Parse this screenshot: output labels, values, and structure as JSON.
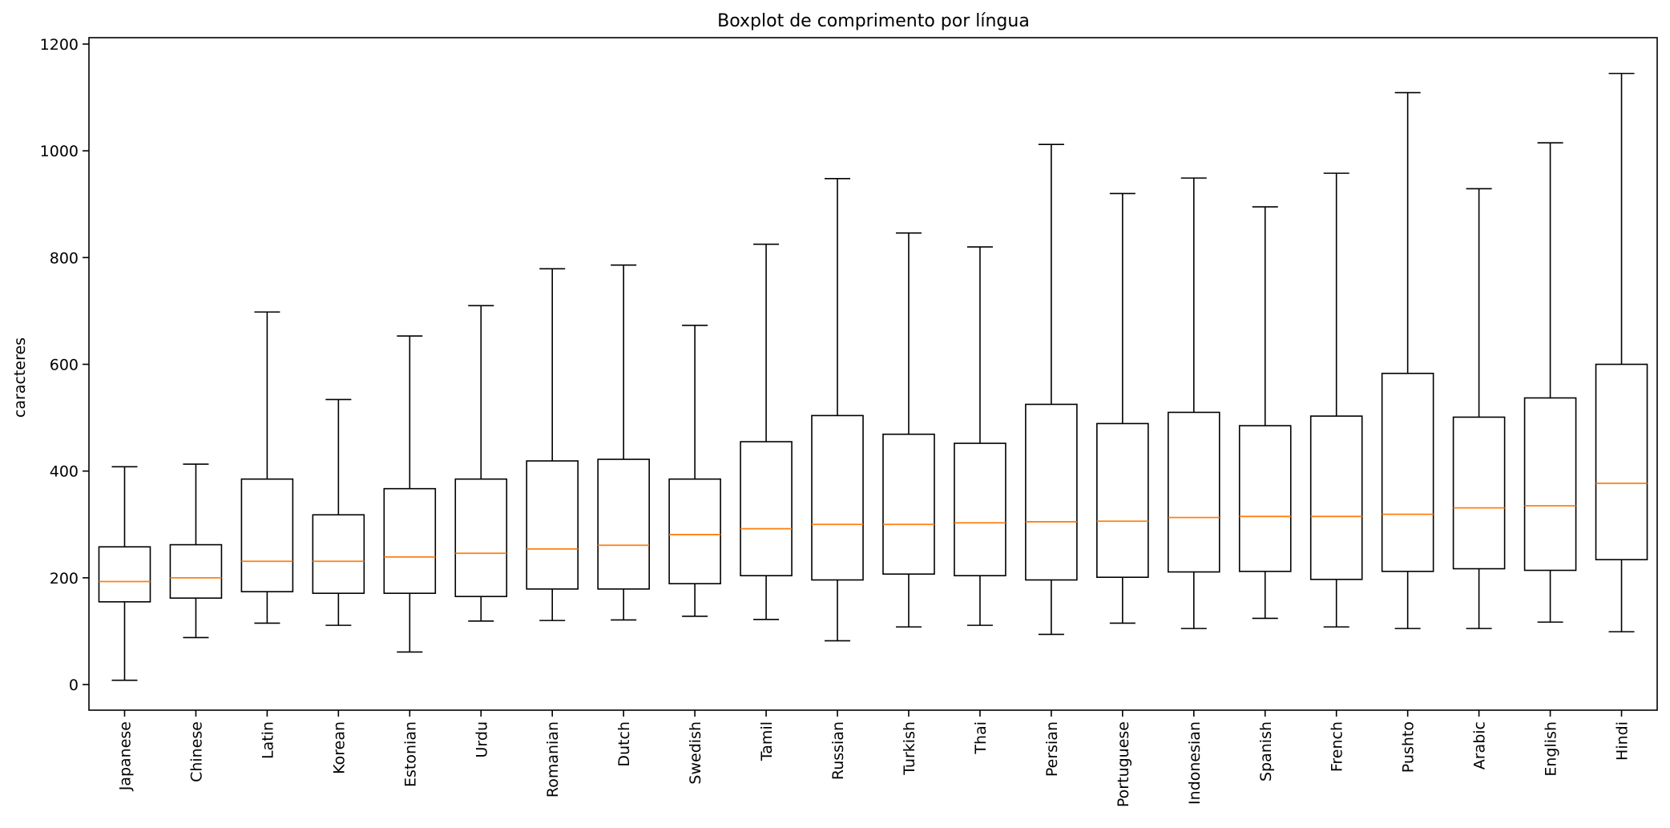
{
  "chart_data": {
    "type": "boxplot",
    "title": "Boxplot de comprimento por língua",
    "xlabel": "",
    "ylabel": "caracteres",
    "ylim": [
      -48,
      1212
    ],
    "yticks": [
      0,
      200,
      400,
      600,
      800,
      1000,
      1200
    ],
    "grid": false,
    "legend": "none",
    "colors": {
      "box": "#000000",
      "median": "#ff7f0e",
      "background": "#ffffff"
    },
    "categories": [
      "Japanese",
      "Chinese",
      "Latin",
      "Korean",
      "Estonian",
      "Urdu",
      "Romanian",
      "Dutch",
      "Swedish",
      "Tamil",
      "Russian",
      "Turkish",
      "Thai",
      "Persian",
      "Portuguese",
      "Indonesian",
      "Spanish",
      "French",
      "Pushto",
      "Arabic",
      "English",
      "Hindi"
    ],
    "boxes": [
      {
        "category": "Japanese",
        "whisker_low": 8,
        "q1": 155,
        "median": 193,
        "q3": 258,
        "whisker_high": 408
      },
      {
        "category": "Chinese",
        "whisker_low": 88,
        "q1": 162,
        "median": 200,
        "q3": 262,
        "whisker_high": 413
      },
      {
        "category": "Latin",
        "whisker_low": 115,
        "q1": 174,
        "median": 231,
        "q3": 385,
        "whisker_high": 698
      },
      {
        "category": "Korean",
        "whisker_low": 111,
        "q1": 171,
        "median": 231,
        "q3": 318,
        "whisker_high": 534
      },
      {
        "category": "Estonian",
        "whisker_low": 61,
        "q1": 171,
        "median": 239,
        "q3": 367,
        "whisker_high": 653
      },
      {
        "category": "Urdu",
        "whisker_low": 119,
        "q1": 165,
        "median": 246,
        "q3": 385,
        "whisker_high": 710
      },
      {
        "category": "Romanian",
        "whisker_low": 120,
        "q1": 179,
        "median": 254,
        "q3": 419,
        "whisker_high": 779
      },
      {
        "category": "Dutch",
        "whisker_low": 121,
        "q1": 179,
        "median": 261,
        "q3": 422,
        "whisker_high": 786
      },
      {
        "category": "Swedish",
        "whisker_low": 128,
        "q1": 189,
        "median": 281,
        "q3": 385,
        "whisker_high": 673
      },
      {
        "category": "Tamil",
        "whisker_low": 122,
        "q1": 204,
        "median": 292,
        "q3": 455,
        "whisker_high": 825
      },
      {
        "category": "Russian",
        "whisker_low": 82,
        "q1": 196,
        "median": 300,
        "q3": 504,
        "whisker_high": 948
      },
      {
        "category": "Turkish",
        "whisker_low": 108,
        "q1": 207,
        "median": 300,
        "q3": 469,
        "whisker_high": 846
      },
      {
        "category": "Thai",
        "whisker_low": 111,
        "q1": 204,
        "median": 303,
        "q3": 452,
        "whisker_high": 820
      },
      {
        "category": "Persian",
        "whisker_low": 94,
        "q1": 196,
        "median": 305,
        "q3": 525,
        "whisker_high": 1012
      },
      {
        "category": "Portuguese",
        "whisker_low": 115,
        "q1": 201,
        "median": 306,
        "q3": 489,
        "whisker_high": 920
      },
      {
        "category": "Indonesian",
        "whisker_low": 105,
        "q1": 211,
        "median": 313,
        "q3": 510,
        "whisker_high": 949
      },
      {
        "category": "Spanish",
        "whisker_low": 124,
        "q1": 212,
        "median": 315,
        "q3": 485,
        "whisker_high": 895
      },
      {
        "category": "French",
        "whisker_low": 108,
        "q1": 197,
        "median": 315,
        "q3": 503,
        "whisker_high": 958
      },
      {
        "category": "Pushto",
        "whisker_low": 105,
        "q1": 212,
        "median": 319,
        "q3": 583,
        "whisker_high": 1109
      },
      {
        "category": "Arabic",
        "whisker_low": 105,
        "q1": 217,
        "median": 331,
        "q3": 501,
        "whisker_high": 929
      },
      {
        "category": "English",
        "whisker_low": 117,
        "q1": 214,
        "median": 335,
        "q3": 537,
        "whisker_high": 1015
      },
      {
        "category": "Hindi",
        "whisker_low": 99,
        "q1": 234,
        "median": 377,
        "q3": 600,
        "whisker_high": 1145
      }
    ]
  }
}
